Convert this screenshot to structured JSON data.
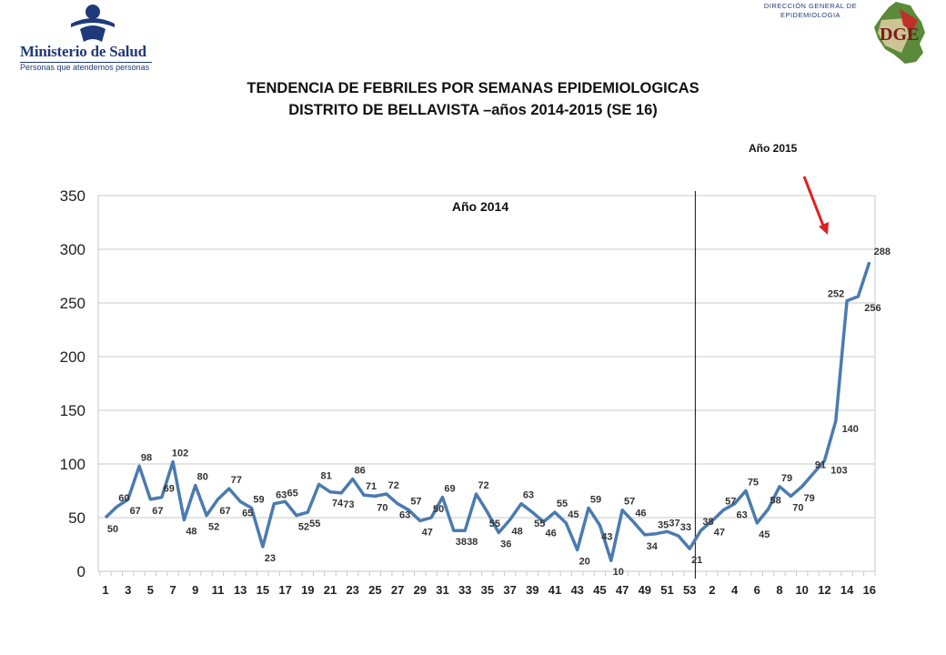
{
  "header": {
    "ministry_name": "Ministerio de Salud",
    "ministry_tagline": "Personas que atendemos personas",
    "dge_line1": "DIRECCIÓN GENERAL DE",
    "dge_line2": "EPIDEMIOLOGIA",
    "dge_logo_letters": "DGE"
  },
  "colors": {
    "line": "#4a7bb0",
    "grid": "#c8c8c8",
    "arrow": "#e02020",
    "logo_blue": "#1f3a7a"
  },
  "chart_data": {
    "type": "line",
    "title": "TENDENCIA DE FEBRILES POR SEMANAS EPIDEMIOLOGICAS",
    "subtitle": "DISTRITO DE BELLAVISTA –años 2014-2015 (SE 16)",
    "xlabel": "",
    "ylabel": "",
    "ylim": [
      0,
      350
    ],
    "yticks": [
      0,
      50,
      100,
      150,
      200,
      250,
      300,
      350
    ],
    "grid": true,
    "annotations": {
      "year_2014": "Año 2014",
      "year_2015": "Año 2015"
    },
    "x": [
      "1",
      "2",
      "3",
      "4",
      "5",
      "6",
      "7",
      "8",
      "9",
      "10",
      "11",
      "12",
      "13",
      "14",
      "15",
      "16",
      "17",
      "18",
      "19",
      "20",
      "21",
      "22",
      "23",
      "24",
      "25",
      "26",
      "27",
      "28",
      "29",
      "30",
      "31",
      "32",
      "33",
      "34",
      "35",
      "36",
      "37",
      "38",
      "39",
      "40",
      "41",
      "42",
      "43",
      "44",
      "45",
      "46",
      "47",
      "48",
      "49",
      "50",
      "51",
      "52",
      "53",
      "1",
      "2",
      "3",
      "4",
      "5",
      "6",
      "7",
      "8",
      "9",
      "10",
      "11",
      "12",
      "13",
      "14",
      "15",
      "16"
    ],
    "values": [
      50,
      60,
      67,
      98,
      67,
      69,
      102,
      48,
      80,
      52,
      67,
      77,
      65,
      59,
      23,
      63,
      65,
      52,
      55,
      81,
      74,
      73,
      86,
      71,
      70,
      72,
      63,
      57,
      47,
      50,
      69,
      38,
      38,
      72,
      55,
      36,
      48,
      63,
      55,
      46,
      55,
      45,
      20,
      59,
      43,
      10,
      57,
      46,
      34,
      35,
      37,
      33,
      21,
      38,
      47,
      57,
      63,
      75,
      45,
      58,
      79,
      70,
      79,
      91,
      103,
      140,
      252,
      256,
      288
    ],
    "labels": [
      "50",
      "60",
      "67",
      "98",
      "67",
      "69",
      "102",
      "48",
      "80",
      "52",
      "67",
      "77",
      "65",
      "59",
      "23",
      "63",
      "65",
      "52",
      "55",
      "81",
      "74",
      "73",
      "86",
      "71",
      "70",
      "72",
      "63",
      "57",
      "47",
      "50",
      "69",
      "38",
      "38",
      "72",
      "55",
      "36",
      "48",
      "63",
      "55",
      "46",
      "55",
      "45",
      "20",
      "59",
      "43",
      "10",
      "57",
      "46",
      "34",
      "35",
      "37",
      "33",
      "21",
      "38",
      "47",
      "57",
      "63",
      "75",
      "45",
      "58",
      "79",
      "70",
      "79",
      "91",
      "103",
      "140",
      "252",
      "256",
      "288"
    ],
    "xtick_labels": [
      "1",
      "3",
      "5",
      "7",
      "9",
      "11",
      "13",
      "15",
      "17",
      "19",
      "21",
      "23",
      "25",
      "27",
      "29",
      "31",
      "33",
      "35",
      "37",
      "39",
      "41",
      "43",
      "45",
      "47",
      "49",
      "51",
      "53",
      "2",
      "4",
      "6",
      "8",
      "10",
      "12",
      "14",
      "16"
    ],
    "divider_after_index": 52
  }
}
